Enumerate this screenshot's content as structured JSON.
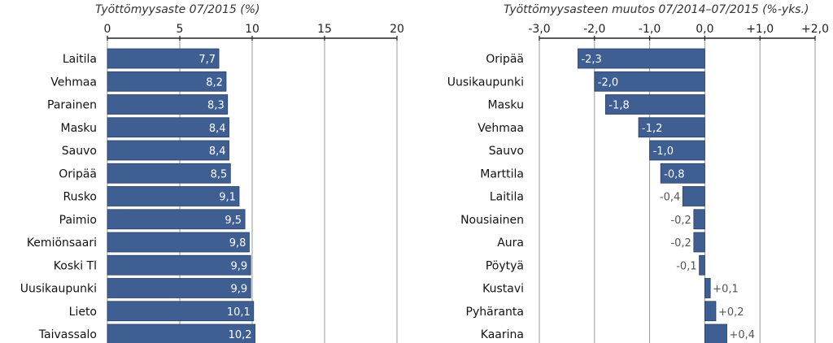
{
  "chart_data": [
    {
      "type": "bar",
      "orientation": "horizontal",
      "title": "Työttömyysaste 07/2015 (%)",
      "xlim": [
        0,
        20
      ],
      "ticks": [
        0,
        5,
        10,
        15,
        20
      ],
      "tick_labels": [
        "0",
        "5",
        "10",
        "15",
        "20"
      ],
      "grid": true,
      "bar_color": "#3f5f93",
      "categories": [
        "Laitila",
        "Vehmaa",
        "Parainen",
        "Masku",
        "Sauvo",
        "Oripää",
        "Rusko",
        "Paimio",
        "Kemiönsaari",
        "Koski Tl",
        "Uusikaupunki",
        "Lieto",
        "Taivassalo"
      ],
      "values": [
        7.7,
        8.2,
        8.3,
        8.4,
        8.4,
        8.5,
        9.1,
        9.5,
        9.8,
        9.9,
        9.9,
        10.1,
        10.2
      ],
      "value_labels": [
        "7,7",
        "8,2",
        "8,3",
        "8,4",
        "8,4",
        "8,5",
        "9,1",
        "9,5",
        "9,8",
        "9,9",
        "9,9",
        "10,1",
        "10,2"
      ]
    },
    {
      "type": "bar",
      "orientation": "horizontal",
      "title": "Työttömyysasteen muutos 07/2014–07/2015 (%-yks.)",
      "xlim": [
        -3,
        2
      ],
      "ticks": [
        -3,
        -2,
        -1,
        0,
        1,
        2
      ],
      "tick_labels": [
        "-3,0",
        "-2,0",
        "-1,0",
        "0,0",
        "+1,0",
        "+2,0"
      ],
      "grid": true,
      "bar_color": "#3f5f93",
      "categories": [
        "Oripää",
        "Uusikaupunki",
        "Masku",
        "Vehmaa",
        "Sauvo",
        "Marttila",
        "Laitila",
        "Nousiainen",
        "Aura",
        "Pöytyä",
        "Kustavi",
        "Pyhäranta",
        "Kaarina"
      ],
      "values": [
        -2.3,
        -2.0,
        -1.8,
        -1.2,
        -1.0,
        -0.8,
        -0.4,
        -0.2,
        -0.2,
        -0.1,
        0.1,
        0.2,
        0.4
      ],
      "value_labels": [
        "-2,3",
        "-2,0",
        "-1,8",
        "-1,2",
        "-1,0",
        "-0,8",
        "-0,4",
        "-0,2",
        "-0,2",
        "-0,1",
        "+0,1",
        "+0,2",
        "+0,4"
      ]
    }
  ]
}
